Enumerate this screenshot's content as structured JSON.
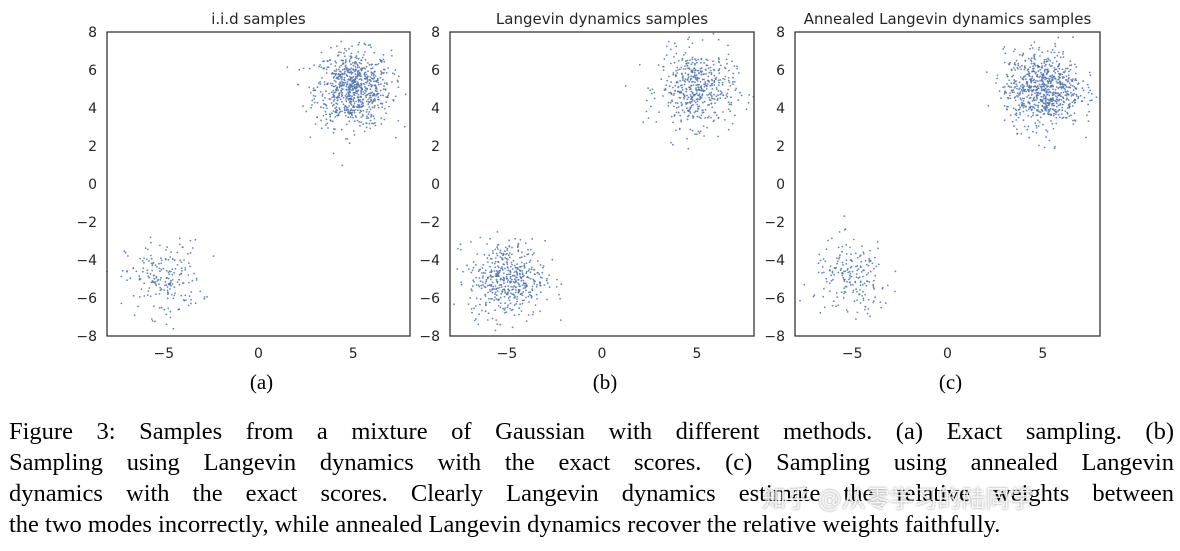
{
  "chart_data": [
    {
      "type": "scatter",
      "title": "i.i.d samples",
      "sublabel": "(a)",
      "xlim": [
        -8,
        8
      ],
      "ylim": [
        -8,
        8
      ],
      "xticks": [
        "−5",
        "0",
        "5"
      ],
      "yticks": [
        "8",
        "6",
        "4",
        "2",
        "0",
        "−2",
        "−4",
        "−6",
        "−8"
      ],
      "clusters": [
        {
          "center": [
            5,
            5
          ],
          "n_points": 800,
          "std": 1
        },
        {
          "center": [
            -5,
            -5
          ],
          "n_points": 200,
          "std": 1
        }
      ],
      "color": "#4c72b0",
      "grid": false
    },
    {
      "type": "scatter",
      "title": "Langevin dynamics samples",
      "sublabel": "(b)",
      "xlim": [
        -8,
        8
      ],
      "ylim": [
        -8,
        8
      ],
      "xticks": [
        "−5",
        "0",
        "5"
      ],
      "yticks": [
        "8",
        "6",
        "4",
        "2",
        "0",
        "−2",
        "−4",
        "−6",
        "−8"
      ],
      "clusters": [
        {
          "center": [
            5,
            5
          ],
          "n_points": 500,
          "std": 1
        },
        {
          "center": [
            -5,
            -5
          ],
          "n_points": 500,
          "std": 1
        }
      ],
      "color": "#4c72b0",
      "grid": false
    },
    {
      "type": "scatter",
      "title": "Annealed Langevin dynamics samples",
      "sublabel": "(c)",
      "xlim": [
        -8,
        8
      ],
      "ylim": [
        -8,
        8
      ],
      "xticks": [
        "−5",
        "0",
        "5"
      ],
      "yticks": [
        "8",
        "6",
        "4",
        "2",
        "0",
        "−2",
        "−4",
        "−6",
        "−8"
      ],
      "clusters": [
        {
          "center": [
            5,
            5
          ],
          "n_points": 800,
          "std": 1
        },
        {
          "center": [
            -5,
            -5
          ],
          "n_points": 200,
          "std": 1
        }
      ],
      "color": "#4c72b0",
      "grid": false
    }
  ],
  "caption": {
    "lines": [
      "Figure 3: Samples from a mixture of Gaussian with different methods. (a) Exact sampling. (b)",
      "Sampling using Langevin dynamics with the exact scores. (c) Sampling using annealed Langevin",
      "dynamics with the exact scores. Clearly Langevin dynamics estimate the relative weights between",
      "the two modes incorrectly, while annealed Langevin dynamics recover the relative weights faithfully."
    ]
  },
  "watermark": "知乎 @从零学习的陆同学"
}
